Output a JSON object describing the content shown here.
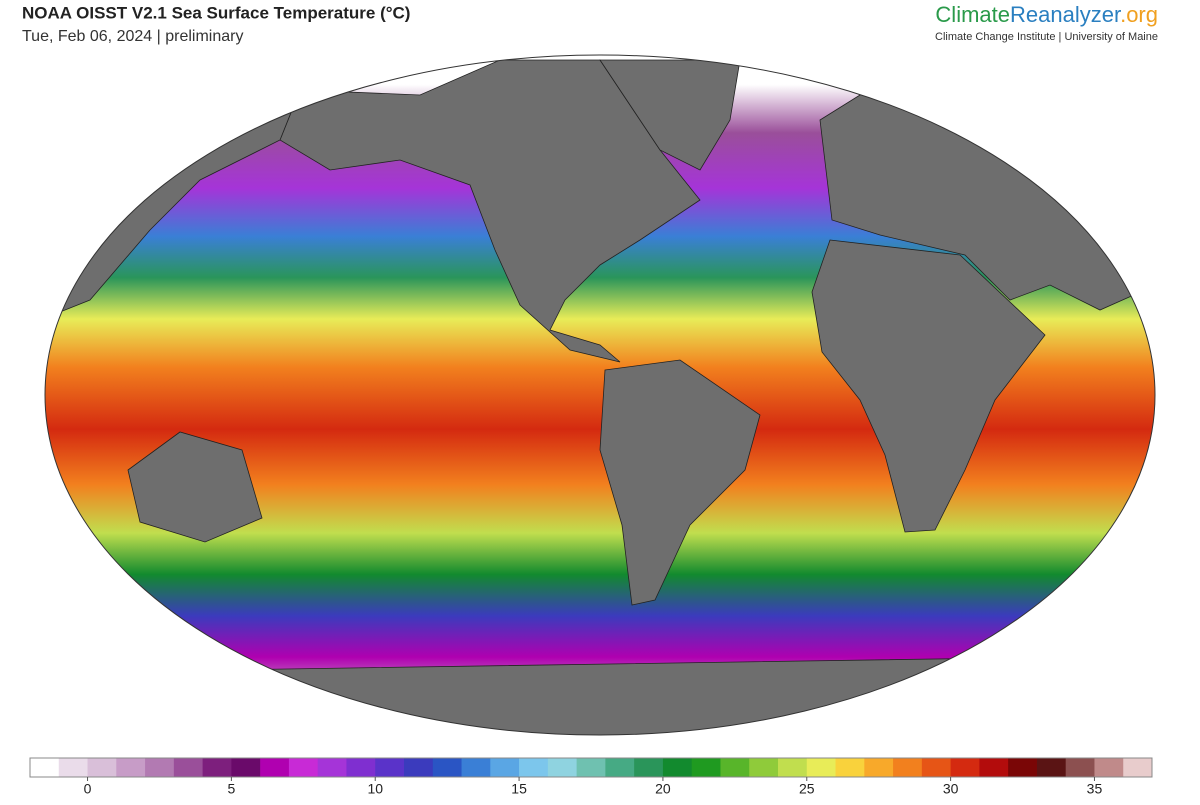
{
  "header": {
    "title": "NOAA OISST V2.1 Sea Surface Temperature (°C)",
    "subtitle": "Tue, Feb 06, 2024 | preliminary"
  },
  "brand": {
    "name_a": "Climate",
    "name_b": "Reanalyzer",
    "name_c": ".org",
    "tagline": "Climate Change Institute | University of Maine"
  },
  "colorbar": {
    "lim": [
      -2,
      37
    ],
    "ticks": [
      0,
      5,
      10,
      15,
      20,
      25,
      30,
      35
    ],
    "colors": [
      "#ffffff",
      "#eadcea",
      "#d9bfd9",
      "#c79cc7",
      "#b27ab2",
      "#9a4f9a",
      "#7d1f7d",
      "#6a0a6a",
      "#b000b0",
      "#c82ad6",
      "#a534d8",
      "#7f2fd0",
      "#5a33c9",
      "#3b3bbd",
      "#2a55c4",
      "#3a7fd6",
      "#5aa6e4",
      "#7cc6ec",
      "#8fd3e0",
      "#6fc1b0",
      "#46aa84",
      "#2a955a",
      "#128a2e",
      "#1f9a20",
      "#58b52a",
      "#8fcb3a",
      "#c1de4e",
      "#e8ec58",
      "#f9d23c",
      "#f8a92a",
      "#f2801e",
      "#e65516",
      "#d42a10",
      "#b30c0c",
      "#7a0606",
      "#5a1414",
      "#8c5050",
      "#c08a8a",
      "#e8cccc"
    ]
  }
}
